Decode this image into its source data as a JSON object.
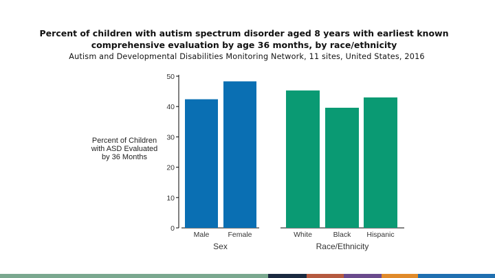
{
  "chart_data": {
    "type": "bar",
    "title_line1": "Percent of children with autism spectrum disorder aged 8 years with earliest known",
    "title_line2": "comprehensive evaluation by age 36 months, by race/ethnicity",
    "subtitle": "Autism and Developmental Disabilities Monitoring Network, 11 sites, United States, 2016",
    "ylabel_lines": [
      "Percent of Children",
      "with ASD Evaluated",
      "by 36 Months"
    ],
    "ylim": [
      0,
      50
    ],
    "yticks": [
      0,
      10,
      20,
      30,
      40,
      50
    ],
    "grid": false,
    "groups": [
      {
        "xlabel": "Sex",
        "color": "#0a6fb3",
        "categories": [
          "Male",
          "Female"
        ],
        "values": [
          42.4,
          48.3
        ]
      },
      {
        "xlabel": "Race/Ethnicity",
        "color": "#0a9a73",
        "categories": [
          "White",
          "Black",
          "Hispanic"
        ],
        "values": [
          45.3,
          39.6,
          43.0
        ]
      }
    ]
  },
  "footer_colors": [
    "#7aa88f",
    "#1a2a40",
    "#b55a3f",
    "#6a4a8c",
    "#e08a2a",
    "#1f6fb0"
  ]
}
